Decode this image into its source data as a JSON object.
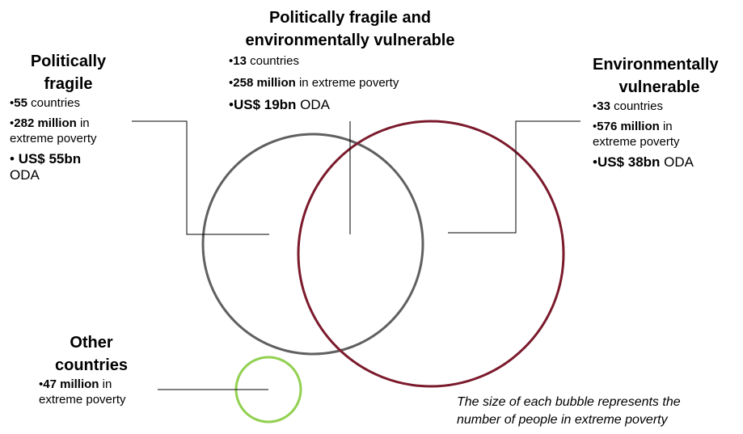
{
  "groups": {
    "fragile": {
      "title_line1": "Politically",
      "title_line2": "fragile",
      "countries_num": "55",
      "countries_text": " countries",
      "poverty_num": "282 million",
      "poverty_text": " in",
      "poverty_text2": "extreme poverty",
      "oda_num": "US$ 55bn",
      "oda_text": "ODA",
      "color": "#606060"
    },
    "overlap": {
      "title_line1": "Politically fragile and",
      "title_line2": "environmentally vulnerable",
      "countries_num": "13",
      "countries_text": " countries",
      "poverty_num": "258 million",
      "poverty_text": " in extreme poverty",
      "oda_num": "US$ 19bn",
      "oda_text": " ODA"
    },
    "vulnerable": {
      "title_line1": "Environmentally",
      "title_line2": "vulnerable",
      "countries_num": "33",
      "countries_text": " countries",
      "poverty_num": "576 million",
      "poverty_text": " in",
      "poverty_text2": "extreme poverty",
      "oda_num": "US$ 38bn",
      "oda_text": " ODA",
      "color": "#7b1a2c"
    },
    "other": {
      "title_line1": "Other",
      "title_line2": "countries",
      "poverty_num": "47 million",
      "poverty_text": " in",
      "poverty_text2": "extreme poverty",
      "color": "#92d050"
    }
  },
  "note": {
    "line1": "The size of each bubble represents the",
    "line2": "number of people in extreme poverty"
  },
  "bullet_char": "•"
}
